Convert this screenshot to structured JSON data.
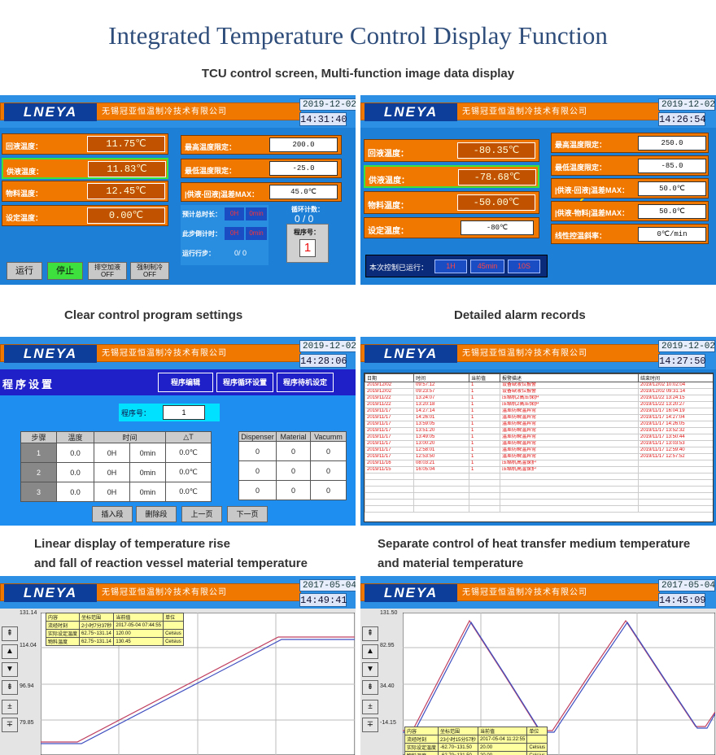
{
  "title": "Integrated Temperature Control Display Function",
  "subtitle": "TCU control screen, Multi-function image data display",
  "captions": {
    "program": "Clear control program settings",
    "alarm": "Detailed alarm records",
    "linear1": "Linear display of temperature rise",
    "linear2": "and fall of reaction vessel material temperature",
    "sep1": "Separate control of heat transfer medium temperature",
    "sep2": "and material temperature"
  },
  "brand": {
    "logo": "LNEYA",
    "company": "无锡冠亚恒温制冷技术有限公司"
  },
  "screens": {
    "s1": {
      "date": "2019-12-02",
      "time": "14:31:40",
      "left": [
        {
          "label": "回液温度：",
          "value": "11.75℃"
        },
        {
          "label": "供液温度：",
          "value": "11.83℃"
        },
        {
          "label": "物料温度：",
          "value": "12.45℃"
        },
        {
          "label": "设定温度：",
          "value": "0.00℃"
        }
      ],
      "right": [
        {
          "label": "最高温度限定：",
          "value": "200.0"
        },
        {
          "label": "最低温度限定：",
          "value": "-25.0"
        },
        {
          "label": "|供液-回液|温差MAX：",
          "value": "45.0℃"
        }
      ],
      "timers": [
        {
          "label": "预计总时长：",
          "h": "0H",
          "m": "0min"
        },
        {
          "label": "此步倒计时：",
          "h": "0H",
          "m": "0min"
        }
      ],
      "step_label": "运行行步：",
      "step_value": "0/ 0",
      "cycle_label": "循环计数：",
      "cycle_value": "0 / 0",
      "prog_label": "程序号：",
      "prog_value": "1",
      "buttons": {
        "run": "运行",
        "stop": "停止",
        "drain": "排空加液",
        "drain_state": "OFF",
        "force": "强制制冷",
        "force_state": "OFF"
      }
    },
    "s2": {
      "date": "2019-12-02",
      "time": "14:26:54",
      "left": [
        {
          "label": "回液温度：",
          "value": "-80.35℃"
        },
        {
          "label": "供液温度：",
          "value": "-78.68℃"
        },
        {
          "label": "物料温度：",
          "value": "-50.00℃"
        }
      ],
      "set_label": "设定温度：",
      "set_value": "-80℃",
      "right": [
        {
          "label": "最高温度限定：",
          "value": "250.0"
        },
        {
          "label": "最低温度限定：",
          "value": "-85.0"
        },
        {
          "label": "|供液-回液|温差MAX：",
          "value": "50.0℃"
        },
        {
          "label": "|供液-物料|温差MAX：",
          "value": "50.0℃"
        },
        {
          "label": "线性控温斜率：",
          "value": "0℃/min"
        }
      ],
      "warn_icon": "?",
      "run_label": "本次控制已运行：",
      "run_h": "1H",
      "run_m": "45min",
      "run_s": "10S"
    },
    "s3": {
      "date": "2019-12-02",
      "time": "14:28:06",
      "title": "程序设置",
      "tabs": [
        "程序编辑",
        "程序循环设置",
        "程序待机设定"
      ],
      "prog_label": "程序号：",
      "prog_value": "1",
      "headers": {
        "step": "步骤",
        "temp": "温度",
        "time": "时间",
        "dt": "△T",
        "dispenser": "Dispenser",
        "material": "Material",
        "vacuum": "Vacumm"
      },
      "rows": [
        {
          "step": "1",
          "temp": "0.0",
          "h": "0H",
          "m": "0min",
          "dt": "0.0℃",
          "disp": "0",
          "mat": "0",
          "vac": "0"
        },
        {
          "step": "2",
          "temp": "0.0",
          "h": "0H",
          "m": "0min",
          "dt": "0.0℃",
          "disp": "0",
          "mat": "0",
          "vac": "0"
        },
        {
          "step": "3",
          "temp": "0.0",
          "h": "0H",
          "m": "0min",
          "dt": "0.0℃",
          "disp": "0",
          "mat": "0",
          "vac": "0"
        }
      ],
      "buttons": [
        "插入段",
        "删除段",
        "上一页",
        "下一页"
      ]
    },
    "s4": {
      "date": "2019-12-02",
      "time": "14:27:50",
      "headers": [
        "日期",
        "时间",
        "当前值",
        "报警描述",
        "结束时间"
      ],
      "rows": [
        [
          "2019/12/02",
          "09:57:12",
          "1",
          "设备缺液位报警",
          "2019/12/02 10:02:04"
        ],
        [
          "2019/12/02",
          "09:23:57",
          "1",
          "设备缺液位报警",
          "2019/12/02 09:31:14"
        ],
        [
          "2019/11/22",
          "13:24:07",
          "1",
          "压缩机2高压保护",
          "2019/11/22 13:24:15"
        ],
        [
          "2019/11/22",
          "13:20:18",
          "1",
          "压缩机2高压保护",
          "2019/11/22 13:20:27"
        ],
        [
          "2019/11/17",
          "14:27:14",
          "1",
          "温差防瞬温异常",
          "2019/11/17 16:04:19"
        ],
        [
          "2019/11/17",
          "14:26:01",
          "1",
          "温差防瞬温异常",
          "2019/11/17 14:27:04"
        ],
        [
          "2019/11/17",
          "13:59:05",
          "1",
          "温差防瞬温异常",
          "2019/11/17 14:26:05"
        ],
        [
          "2019/11/17",
          "13:51:20",
          "1",
          "温差防瞬温异常",
          "2019/11/17 13:52:32"
        ],
        [
          "2019/11/17",
          "13:49:05",
          "1",
          "温差防瞬温异常",
          "2019/11/17 13:50:44"
        ],
        [
          "2019/11/17",
          "13:00:20",
          "1",
          "温差防瞬温异常",
          "2019/11/17 13:03:53"
        ],
        [
          "2019/11/17",
          "12:58:01",
          "1",
          "温差防瞬温异常",
          "2019/11/17 12:59:40"
        ],
        [
          "2019/11/17",
          "12:53:50",
          "1",
          "温差防瞬温异常",
          "2019/11/17 12:57:52"
        ],
        [
          "2019/11/16",
          "08:03:21",
          "1",
          "压缩机高温保护",
          ""
        ],
        [
          "2019/11/15",
          "16:05:04",
          "1",
          "压缩机高温保护",
          ""
        ]
      ]
    },
    "s5": {
      "date": "2017-05-04",
      "time": "14:49:41",
      "yticks": [
        "131.14",
        "114.04",
        "96.94",
        "79.85"
      ],
      "legend_head": [
        "内容",
        "坐标范围",
        "当前值",
        "单位"
      ],
      "legend_rows": [
        [
          "流经时刻",
          "2小时7分37秒",
          "2017-05-04 07:44:55",
          ""
        ],
        [
          "实际设定温度",
          "62.75~131.14",
          "120.00",
          "Celsius"
        ],
        [
          "物料温度",
          "62.75~131.14",
          "130.45",
          "Celsius"
        ]
      ]
    },
    "s6": {
      "date": "2017-05-04",
      "time": "14:45:09",
      "yticks": [
        "131.50",
        "82.95",
        "34.40",
        "-14.15"
      ],
      "legend_head": [
        "内容",
        "坐标范围",
        "当前值",
        "单位"
      ],
      "legend_rows": [
        [
          "流经时刻",
          "23小时15分57秒",
          "2017-05-04 11:22:55",
          ""
        ],
        [
          "实际设定温度",
          "-62.70~131.50",
          "20.00",
          "Celsius"
        ],
        [
          "物料温度",
          "-62.70~131.50",
          "20.00",
          "Celsius"
        ]
      ]
    }
  },
  "side_icons": [
    "up-fast-icon",
    "up-icon",
    "down-icon",
    "down-fast-icon",
    "zoom-in-icon",
    "zoom-out-icon"
  ],
  "colors": {
    "panel_blue": "#1e7fd6",
    "orange": "#f07800",
    "dark_orange": "#c15200",
    "logo_navy": "#0d3f9a",
    "title": "#2f4d7a"
  }
}
